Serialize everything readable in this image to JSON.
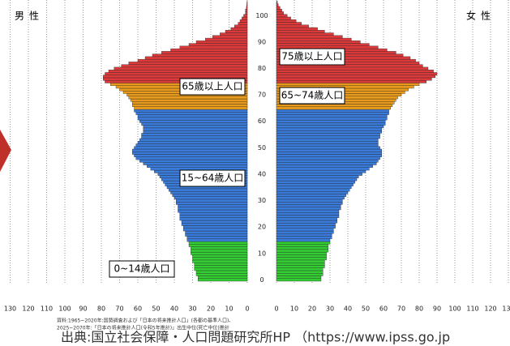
{
  "chart_data": {
    "type": "population-pyramid",
    "ages": [
      0,
      1,
      2,
      3,
      4,
      5,
      6,
      7,
      8,
      9,
      10,
      11,
      12,
      13,
      14,
      15,
      16,
      17,
      18,
      19,
      20,
      21,
      22,
      23,
      24,
      25,
      26,
      27,
      28,
      29,
      30,
      31,
      32,
      33,
      34,
      35,
      36,
      37,
      38,
      39,
      40,
      41,
      42,
      43,
      44,
      45,
      46,
      47,
      48,
      49,
      50,
      51,
      52,
      53,
      54,
      55,
      56,
      57,
      58,
      59,
      60,
      61,
      62,
      63,
      64,
      65,
      66,
      67,
      68,
      69,
      70,
      71,
      72,
      73,
      74,
      75,
      76,
      77,
      78,
      79,
      80,
      81,
      82,
      83,
      84,
      85,
      86,
      87,
      88,
      89,
      90,
      91,
      92,
      93,
      94,
      95,
      96,
      97,
      98,
      99,
      100,
      101,
      102,
      103,
      104,
      105
    ],
    "ylim": [
      0,
      106
    ],
    "yticks": [
      0,
      10,
      20,
      30,
      40,
      50,
      60,
      70,
      80,
      90,
      100
    ],
    "xlim": [
      0,
      130
    ],
    "xticks": [
      0,
      10,
      20,
      30,
      40,
      50,
      60,
      70,
      80,
      90,
      100,
      110,
      120,
      130
    ],
    "grid": true,
    "series": [
      {
        "name": "男性",
        "side": "left",
        "values": [
          27,
          27,
          28,
          28,
          29,
          29,
          29,
          30,
          30,
          30,
          31,
          31,
          31,
          32,
          32,
          33,
          33,
          34,
          34,
          35,
          35,
          36,
          36,
          37,
          37,
          37,
          38,
          38,
          38,
          39,
          39,
          40,
          41,
          42,
          43,
          44,
          45,
          46,
          47,
          48,
          49,
          51,
          53,
          55,
          57,
          59,
          61,
          62,
          63,
          63,
          62,
          61,
          60,
          59,
          58,
          58,
          57,
          57,
          57,
          58,
          59,
          60,
          60,
          61,
          62,
          62,
          63,
          63,
          64,
          65,
          66,
          68,
          70,
          72,
          75,
          78,
          79,
          79,
          78,
          76,
          73,
          69,
          65,
          60,
          56,
          52,
          47,
          42,
          37,
          32,
          28,
          23,
          19,
          15,
          12,
          9,
          7,
          5,
          4,
          3,
          2,
          1,
          1,
          0.5,
          0.3,
          0.2
        ]
      },
      {
        "name": "女性",
        "side": "right",
        "values": [
          25,
          25,
          26,
          26,
          26,
          27,
          27,
          27,
          28,
          28,
          28,
          29,
          29,
          29,
          30,
          30,
          31,
          31,
          32,
          32,
          33,
          33,
          34,
          34,
          35,
          35,
          35,
          36,
          36,
          37,
          37,
          38,
          39,
          40,
          41,
          42,
          43,
          44,
          45,
          46,
          48,
          50,
          52,
          54,
          56,
          57,
          58,
          59,
          59,
          59,
          58,
          57,
          57,
          57,
          58,
          58,
          59,
          59,
          60,
          61,
          61,
          62,
          62,
          63,
          63,
          64,
          65,
          66,
          67,
          68,
          70,
          72,
          74,
          77,
          80,
          84,
          87,
          89,
          90,
          88,
          85,
          82,
          80,
          78,
          75,
          71,
          67,
          62,
          57,
          52,
          47,
          42,
          37,
          32,
          27,
          23,
          18,
          14,
          11,
          8,
          6,
          4,
          3,
          2,
          1,
          0.5
        ]
      }
    ],
    "bands": [
      {
        "from": 0,
        "to": 14,
        "color": "#33cc33"
      },
      {
        "from": 15,
        "to": 64,
        "color": "#3a7ad8"
      },
      {
        "from": 65,
        "to": 74,
        "color": "#e89a1c"
      },
      {
        "from": 75,
        "to": 105,
        "color": "#dc3a3a"
      }
    ],
    "annotations": [
      "75歳以上人口",
      "65~74歳人口",
      "65歳以上人口",
      "15~64歳人口",
      "0~14歳人口"
    ],
    "notes": [
      "資料:1965~2020年:国勢調査および「日本の将来推計人口」(各都の基準人口)、",
      "2025~2070年:「日本の将来推計人口(令和5年推計)」出生中位(死亡中位)推計"
    ],
    "source": "出典:国立社会保障・人口問題研究所HP （https://www.ipss.go.jp"
  }
}
